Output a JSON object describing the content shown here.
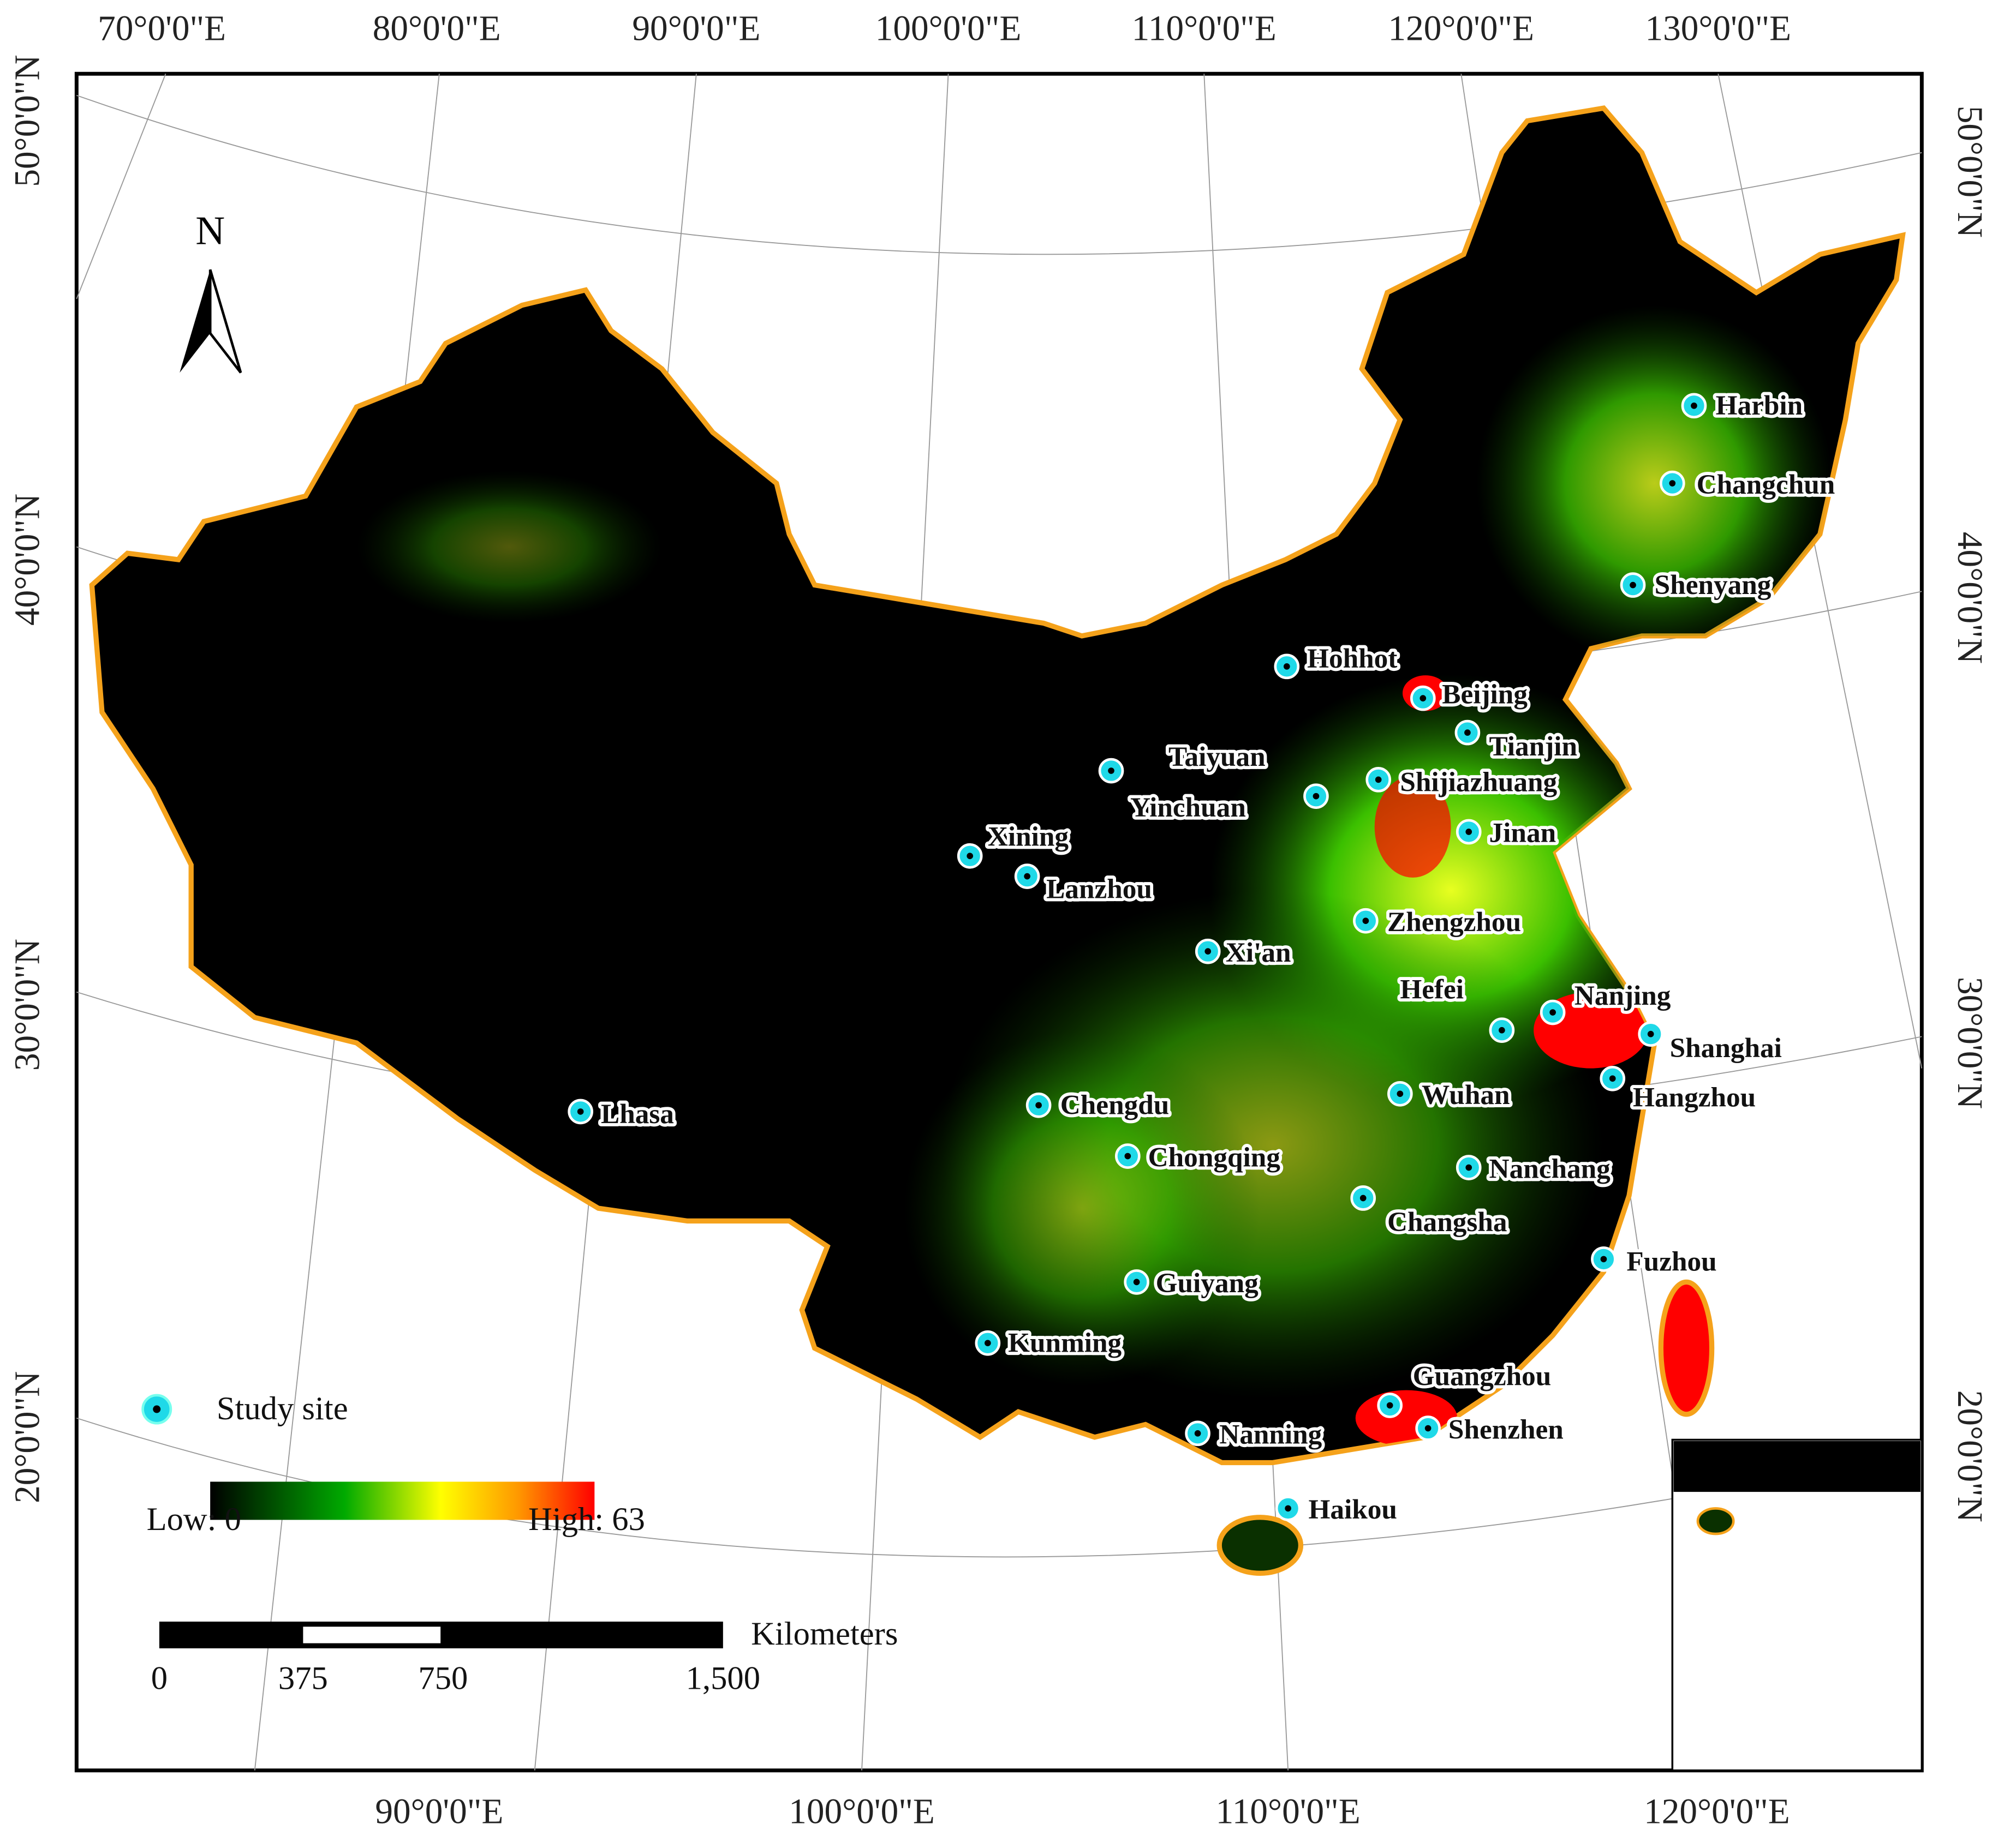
{
  "map": {
    "north_arrow": "N",
    "graticule": {
      "top": [
        "70°0'0\"E",
        "80°0'0\"E",
        "90°0'0\"E",
        "100°0'0\"E",
        "110°0'0\"E",
        "120°0'0\"E",
        "130°0'0\"E"
      ],
      "bottom": [
        "90°0'0\"E",
        "100°0'0\"E",
        "110°0'0\"E",
        "120°0'0\"E"
      ],
      "left": [
        "50°0'0\"N",
        "40°0'0\"N",
        "30°0'0\"N",
        "20°0'0\"N"
      ],
      "right": [
        "50°0'0\"N",
        "40°0'0\"N",
        "30°0'0\"N",
        "20°0'0\"N"
      ]
    },
    "cities": [
      "Harbin",
      "Changchun",
      "Shenyang",
      "Hohhot",
      "Beijing",
      "Tianjin",
      "Taiyuan",
      "Shijiazhuang",
      "Yinchuan",
      "Jinan",
      "Xining",
      "Lanzhou",
      "Zhengzhou",
      "Xi'an",
      "Hefei",
      "Nanjing",
      "Shanghai",
      "Hangzhou",
      "Wuhan",
      "Lhasa",
      "Chengdu",
      "Chongqing",
      "Nanchang",
      "Changsha",
      "Fuzhou",
      "Guiyang",
      "Kunming",
      "Guangzhou",
      "Shenzhen",
      "Nanning",
      "Haikou"
    ],
    "legend": {
      "study_site": "Study site",
      "low": "Low: 0",
      "high": "High: 63"
    },
    "scale_bar": {
      "unit": "Kilometers",
      "ticks": [
        "0",
        "375",
        "750",
        "1,500"
      ]
    }
  }
}
